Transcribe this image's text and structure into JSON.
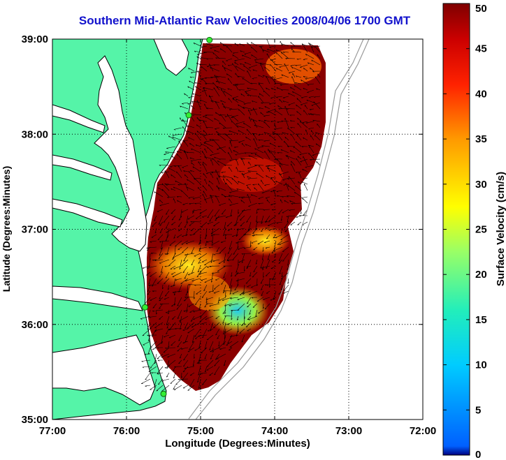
{
  "title": "Southern Mid-Atlantic Raw Velocities 2008/04/06 1700 GMT",
  "map": {
    "xlabel": "Longitude (Degrees:Minutes)",
    "ylabel": "Latitude (Degrees:Minutes)",
    "x_ticks": [
      {
        "value": -77,
        "label": "77:00"
      },
      {
        "value": -76,
        "label": "76:00"
      },
      {
        "value": -75,
        "label": "75:00"
      },
      {
        "value": -74,
        "label": "74:00"
      },
      {
        "value": -73,
        "label": "73:00"
      },
      {
        "value": -72,
        "label": "72:00"
      }
    ],
    "y_ticks": [
      {
        "value": 35,
        "label": "35:00"
      },
      {
        "value": 36,
        "label": "36:00"
      },
      {
        "value": 37,
        "label": "37:00"
      },
      {
        "value": 38,
        "label": "38:00"
      },
      {
        "value": 39,
        "label": "39:00"
      }
    ],
    "xlim": [
      -77,
      -72
    ],
    "ylim": [
      35,
      39
    ],
    "land_color": "#55f4a8",
    "grid": "dotted",
    "radar_sites": [
      {
        "lon": -74.88,
        "lat": 38.99
      },
      {
        "lon": -75.16,
        "lat": 38.2
      },
      {
        "lon": -75.75,
        "lat": 36.18
      },
      {
        "lon": -75.5,
        "lat": 35.27
      }
    ]
  },
  "colorbar": {
    "label": "Surface Velocity (cm/s)",
    "min": 0,
    "max": 50,
    "ticks": [
      {
        "value": 0,
        "label": "0"
      },
      {
        "value": 5,
        "label": "5"
      },
      {
        "value": 10,
        "label": "10"
      },
      {
        "value": 15,
        "label": "15"
      },
      {
        "value": 20,
        "label": "20"
      },
      {
        "value": 25,
        "label": "25"
      },
      {
        "value": 30,
        "label": "30"
      },
      {
        "value": 35,
        "label": "35"
      },
      {
        "value": 40,
        "label": "40"
      },
      {
        "value": 45,
        "label": "45"
      },
      {
        "value": 50,
        "label": "50"
      }
    ]
  }
}
